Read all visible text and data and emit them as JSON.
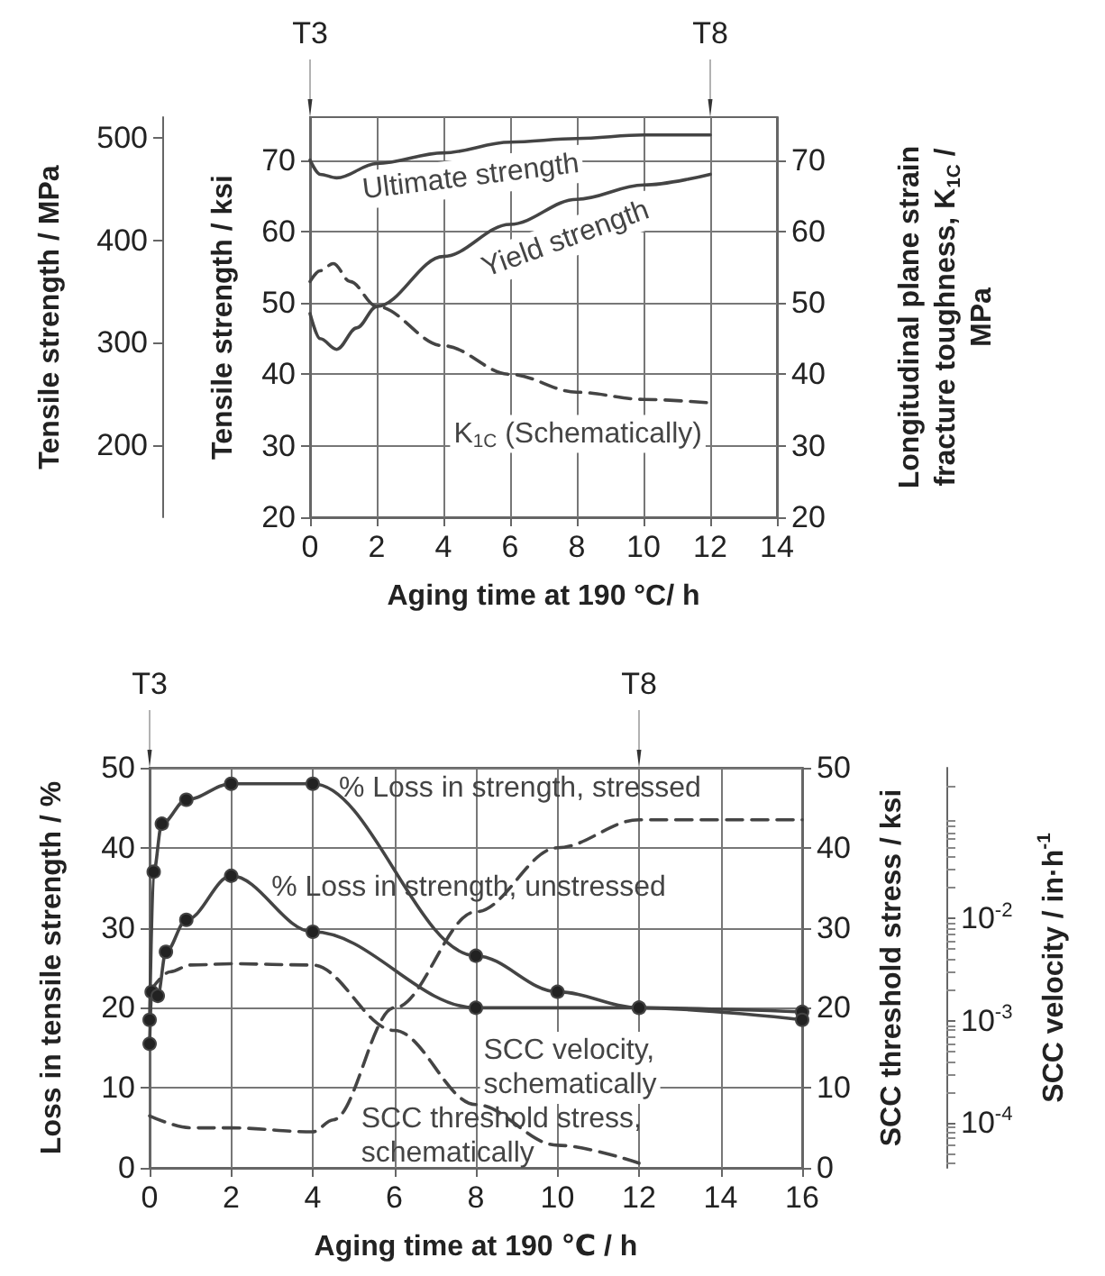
{
  "chart_data": [
    {
      "type": "line",
      "xlabel": "Aging time at 190 °C/ h",
      "ylabel": "Tensile strength / ksi",
      "y2label": "Longitudinal plane strain fracture toughness, K$_{1C}$ / MPa",
      "y3label": "Tensile strength / MPa",
      "xlim": [
        0,
        14
      ],
      "xticks": [
        0,
        2,
        4,
        6,
        8,
        10,
        12,
        14
      ],
      "ylim": [
        20,
        76
      ],
      "yticks": [
        20,
        30,
        40,
        50,
        60,
        70
      ],
      "y2lim": [
        20,
        76
      ],
      "y2ticks": [
        20,
        30,
        40,
        50,
        60,
        70
      ],
      "y3lim": [
        130,
        520
      ],
      "y3ticks": [
        200,
        300,
        400,
        500
      ],
      "grid": true,
      "legend": false,
      "marker": "none",
      "annotations": [
        "T3",
        "T8"
      ],
      "series": [
        {
          "name": "Ultimate strength",
          "color": "#444444",
          "line_style": "solid",
          "x": [
            0,
            0.3,
            0.8,
            2,
            4,
            6,
            8,
            10,
            12
          ],
          "values": [
            70,
            68,
            67.5,
            69.5,
            71,
            72.5,
            73,
            73.5,
            73.5
          ]
        },
        {
          "name": "Yield strength",
          "color": "#444444",
          "line_style": "solid",
          "x": [
            0,
            0.3,
            0.8,
            1.4,
            2,
            4,
            6,
            8,
            10,
            12
          ],
          "values": [
            48.5,
            45,
            43.5,
            46.5,
            49.5,
            56.5,
            61,
            64.5,
            66.5,
            68
          ]
        },
        {
          "name": "K$_{1C}$ (Schematically)",
          "color": "#444444",
          "line_style": "dashed",
          "axis": "y2",
          "x": [
            0,
            0.3,
            0.7,
            1.2,
            2,
            4,
            6,
            8,
            10,
            12
          ],
          "values": [
            53,
            54.5,
            55.5,
            53,
            49.5,
            44,
            40,
            37.5,
            36.5,
            36
          ]
        }
      ]
    },
    {
      "type": "line",
      "xlabel": "Aging time at 190 ℃ / h",
      "ylabel": "Loss in tensile strength / %",
      "y2label": "SCC threshold stress / ksi",
      "y3label": "SCC velocity / in·h$^{-1}$",
      "xlim": [
        0,
        16
      ],
      "xticks": [
        0,
        2,
        4,
        6,
        8,
        10,
        12,
        14,
        16
      ],
      "ylim": [
        0,
        50
      ],
      "yticks": [
        0,
        10,
        20,
        30,
        40,
        50
      ],
      "y2lim": [
        0,
        50
      ],
      "y2ticks": [
        0,
        10,
        20,
        30,
        40,
        50
      ],
      "y3lim": [
        3.6e-05,
        0.3
      ],
      "y3ticks": [
        {
          "value": 0.0001,
          "label": "10$^{-4}$"
        },
        {
          "value": 0.001,
          "label": "10$^{-3}$"
        },
        {
          "value": 0.01,
          "label": "10$^{-2}$"
        }
      ],
      "log": "y3",
      "grid": true,
      "legend": false,
      "annotations": [
        "T3",
        "T8"
      ],
      "series": [
        {
          "name": "% Loss in strength, stressed",
          "color": "#444444",
          "marker": "circle",
          "line_style": "solid",
          "x": [
            0,
            0.1,
            0.3,
            0.9,
            2,
            4,
            8,
            10,
            12,
            16
          ],
          "values": [
            18.5,
            37,
            43,
            46,
            48,
            48,
            26.5,
            22,
            20,
            19.5
          ]
        },
        {
          "name": "% Loss in strength, unstressed",
          "color": "#444444",
          "marker": "circle",
          "line_style": "solid",
          "x": [
            0,
            0.05,
            0.2,
            0.4,
            0.9,
            2,
            4,
            8,
            12,
            16
          ],
          "values": [
            15.5,
            22,
            21.5,
            27,
            31,
            36.5,
            29.5,
            20,
            20,
            18.5
          ]
        },
        {
          "name": "SCC velocity, schematically",
          "color": "#444444",
          "marker": "none",
          "line_style": "dashed",
          "axis": "y3",
          "x": [
            0,
            0.5,
            1,
            2,
            4,
            6,
            8,
            10,
            12
          ],
          "values": [
            0.0019,
            0.003,
            0.0035,
            0.0036,
            0.0035,
            0.0008,
            0.00015,
            6e-05,
            4e-05
          ]
        },
        {
          "name": "SCC threshold stress, schematically",
          "color": "#444444",
          "marker": "none",
          "line_style": "dashed",
          "axis": "y2",
          "x": [
            0,
            1,
            2,
            4,
            4.5,
            6,
            8,
            10,
            12,
            16
          ],
          "values": [
            6.5,
            5,
            5,
            4.5,
            6,
            20,
            32,
            40,
            43.5,
            43.5
          ]
        }
      ]
    }
  ]
}
